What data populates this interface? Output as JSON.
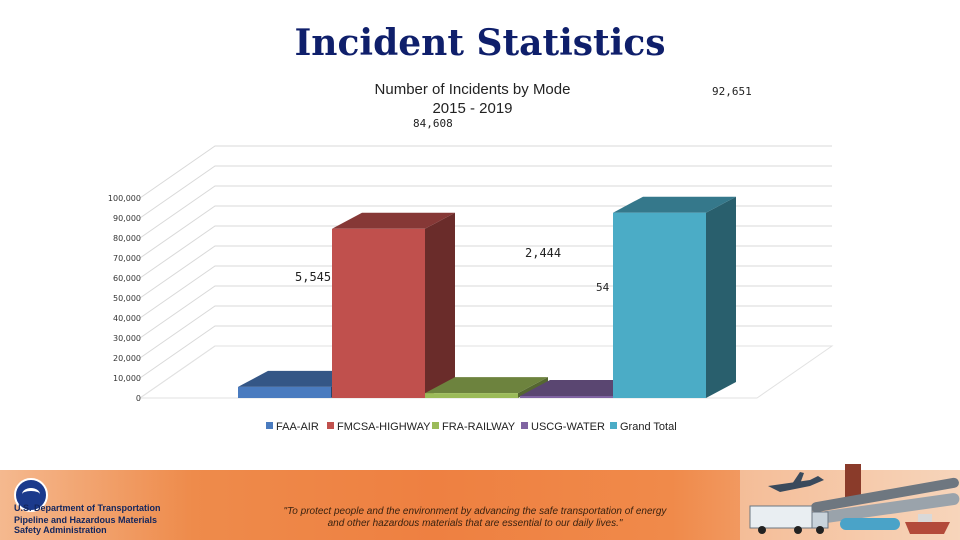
{
  "slide": {
    "title": "Incident Statistics"
  },
  "chart_data": {
    "type": "bar",
    "title_line1": "Number of Incidents by Mode",
    "title_line2": "2015 - 2019",
    "categories": [
      "FAA-AIR",
      "FMCSA-HIGHWAY",
      "FRA-RAILWAY",
      "USCG-WATER",
      "Grand Total"
    ],
    "values": [
      5545,
      84608,
      2444,
      54,
      92651
    ],
    "data_labels": [
      "5,545",
      "84,608",
      "2,444",
      "54",
      "92,651"
    ],
    "y_ticks": [
      "0",
      "10,000",
      "20,000",
      "30,000",
      "40,000",
      "50,000",
      "60,000",
      "70,000",
      "80,000",
      "90,000",
      "100,000"
    ],
    "ylim": [
      0,
      100000
    ],
    "legend": {
      "position": "bottom",
      "entries": [
        "FAA-AIR",
        "FMCSA-HIGHWAY",
        "FRA-RAILWAY",
        "USCG-WATER",
        "Grand Total"
      ]
    },
    "colors": {
      "FAA-AIR": "#4a7bbf",
      "FMCSA-HIGHWAY": "#c0504d",
      "FRA-RAILWAY": "#9bbb59",
      "USCG-WATER": "#8064a2",
      "Grand Total": "#4bacc6"
    },
    "style": "3d-column"
  },
  "footer": {
    "agency_line1": "U.S. Department of Transportation",
    "agency_line2": "Pipeline and Hazardous Materials",
    "agency_line3": "Safety Administration",
    "quote_line1": "\"To protect people and the environment by advancing the safe transportation of energy",
    "quote_line2": "and other hazardous materials that are essential to our daily lives.\"",
    "logo_icon": "dot-logo-icon",
    "art_icon": "transport-collage-icon"
  }
}
